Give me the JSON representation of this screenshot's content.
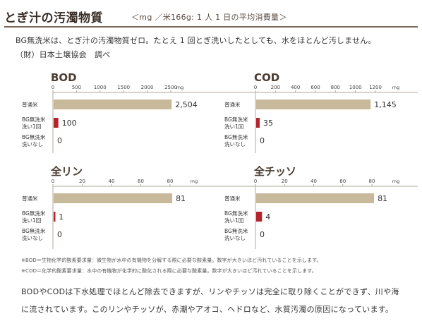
{
  "header": {
    "title": "とぎ汁の汚濁物質",
    "subtitle": "＜mg ／米166g: 1 人 1 日の平均消費量＞"
  },
  "intro": {
    "line1": "BG無洗米は、とぎ汁の汚濁物質ゼロ。たとえ 1 回とぎ洗いしたとしても、水をほとんど汚しません。",
    "line2": "（財）日本土壌協会　調べ"
  },
  "colors": {
    "futsumai_bar": "#c8b99b",
    "bg_wash_bar": "#b5242b",
    "frame": "#b3a79a",
    "header_rule": "#7a6653"
  },
  "chart_data": [
    {
      "type": "bar",
      "orientation": "horizontal",
      "title": "BOD",
      "unit": "mg",
      "xlim": [
        0,
        2500
      ],
      "ticks": [
        "0",
        "500",
        "1000",
        "1500",
        "2000",
        "2500"
      ],
      "categories": [
        [
          "普通米"
        ],
        [
          "BG無洗米",
          "洗い1回"
        ],
        [
          "BG無洗米",
          "洗いなし"
        ]
      ],
      "values": [
        2504,
        100,
        0
      ],
      "labels": [
        "2,504",
        "100",
        "0"
      ]
    },
    {
      "type": "bar",
      "orientation": "horizontal",
      "title": "COD",
      "unit": "mg",
      "xlim": [
        0,
        1200
      ],
      "ticks": [
        "0",
        "200",
        "400",
        "600",
        "800",
        "1000",
        "1200"
      ],
      "categories": [
        [
          "普通米"
        ],
        [
          "BG無洗米",
          "洗い1回"
        ],
        [
          "BG無洗米",
          "洗いなし"
        ]
      ],
      "values": [
        1145,
        35,
        0
      ],
      "labels": [
        "1,145",
        "35",
        "0"
      ]
    },
    {
      "type": "bar",
      "orientation": "horizontal",
      "title": "全リン",
      "unit": "mg",
      "xlim": [
        0,
        80
      ],
      "ticks": [
        "0",
        "20",
        "40",
        "60",
        "80"
      ],
      "categories": [
        [
          "普通米"
        ],
        [
          "BG無洗米",
          "洗い1回"
        ],
        [
          "BG無洗米",
          "洗いなし"
        ]
      ],
      "values": [
        81,
        1,
        0
      ],
      "labels": [
        "81",
        "1",
        "0"
      ]
    },
    {
      "type": "bar",
      "orientation": "horizontal",
      "title": "全チッソ",
      "unit": "mg",
      "xlim": [
        0,
        80
      ],
      "ticks": [
        "0",
        "20",
        "40",
        "60",
        "80"
      ],
      "categories": [
        [
          "普通米"
        ],
        [
          "BG無洗米",
          "洗い1回"
        ],
        [
          "BG無洗米",
          "洗いなし"
        ]
      ],
      "values": [
        81,
        4,
        0
      ],
      "labels": [
        "81",
        "4",
        "0"
      ]
    }
  ],
  "notes": {
    "bod": "※BOD＝生物化学的酸素要求量：微生物が水中の有機物を分解する際に必要な酸素量。数字が大きいほど汚れていることを示します。",
    "cod": "※COD＝化学的酸素要求量：水中の有機物が化学的に酸化される際に必要な酸素量。数字が大きいほど汚れていることを示します。"
  },
  "footer": {
    "line1": "BODやCODは下水処理でほとんど除去できますが、リンやチッソは完全に取り除くことができず、川や海",
    "line2": "に流されています。このリンやチッソが、赤潮やアオコ、ヘドロなど、水質汚濁の原因になっています。"
  }
}
